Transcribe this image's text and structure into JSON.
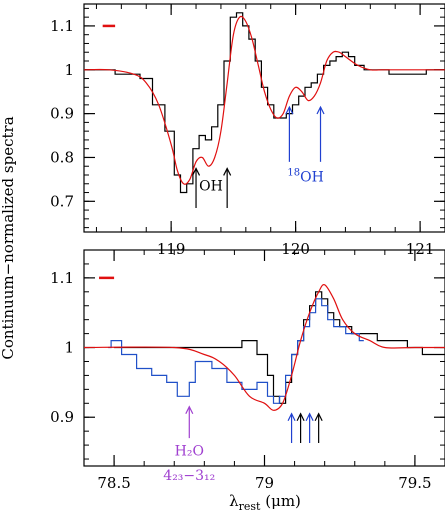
{
  "figure": {
    "ylabel": "Continuum−normalized spectra",
    "xlabel_main": "λ",
    "xlabel_sub": "rest",
    "xlabel_unit": " (μm)"
  },
  "chart_data": [
    {
      "type": "line",
      "panel": "top",
      "xlim": [
        118.3,
        121.2
      ],
      "ylim": [
        0.63,
        1.15
      ],
      "xticks": [
        119,
        120,
        121
      ],
      "xtick_labels": [
        "119",
        "120",
        "121"
      ],
      "yticks": [
        0.7,
        0.8,
        0.9,
        1.0,
        1.1
      ],
      "ytick_labels": [
        "0.7",
        "0.8",
        "0.9",
        "1",
        "1.1"
      ],
      "resolution_bar": {
        "x": [
          118.45,
          118.55
        ],
        "y": 1.1,
        "color": "#e01010"
      },
      "series": [
        {
          "style": "histogram",
          "color": "#000000",
          "x": [
            118.3,
            118.4,
            118.5,
            118.6,
            118.7,
            118.8,
            118.9,
            119.0,
            119.05,
            119.1,
            119.15,
            119.2,
            119.25,
            119.3,
            119.35,
            119.4,
            119.45,
            119.5,
            119.55,
            119.6,
            119.65,
            119.7,
            119.75,
            119.8,
            119.85,
            119.9,
            119.95,
            120.0,
            120.05,
            120.1,
            120.15,
            120.2,
            120.25,
            120.3,
            120.35,
            120.4,
            120.45,
            120.5,
            120.6,
            120.7,
            120.8,
            120.9,
            121.0,
            121.1,
            121.2
          ],
          "y": [
            1.0,
            1.0,
            1.0,
            0.99,
            0.99,
            0.98,
            0.92,
            0.86,
            0.76,
            0.72,
            0.74,
            0.82,
            0.85,
            0.84,
            0.87,
            0.92,
            1.02,
            1.12,
            1.13,
            1.1,
            1.07,
            1.02,
            0.96,
            0.92,
            0.89,
            0.89,
            0.9,
            0.92,
            0.94,
            0.96,
            0.97,
            0.99,
            1.01,
            1.02,
            1.03,
            1.04,
            1.03,
            1.01,
            1.0,
            1.0,
            0.99,
            0.99,
            0.99,
            1.0,
            1.0
          ]
        },
        {
          "style": "line",
          "color": "#e01010",
          "x": [
            118.3,
            118.5,
            118.7,
            118.8,
            118.9,
            119.0,
            119.05,
            119.1,
            119.15,
            119.2,
            119.25,
            119.3,
            119.35,
            119.4,
            119.45,
            119.5,
            119.55,
            119.6,
            119.65,
            119.7,
            119.75,
            119.8,
            119.85,
            119.9,
            119.95,
            120.0,
            120.05,
            120.1,
            120.15,
            120.2,
            120.25,
            120.3,
            120.35,
            120.4,
            120.5,
            120.6,
            120.7,
            120.8,
            120.9,
            121.0,
            121.2
          ],
          "y": [
            1.0,
            1.0,
            0.99,
            0.97,
            0.92,
            0.83,
            0.77,
            0.74,
            0.75,
            0.79,
            0.8,
            0.78,
            0.8,
            0.86,
            0.97,
            1.08,
            1.12,
            1.11,
            1.07,
            1.01,
            0.95,
            0.91,
            0.89,
            0.9,
            0.94,
            0.96,
            0.95,
            0.93,
            0.94,
            0.97,
            1.02,
            1.04,
            1.04,
            1.03,
            1.01,
            1.0,
            1.0,
            1.0,
            1.0,
            1.0,
            1.0
          ]
        }
      ],
      "annotations": [
        {
          "label": "OH",
          "color": "#000000",
          "arrows_x": [
            119.2,
            119.45
          ]
        },
        {
          "label_sup": "18",
          "label": "OH",
          "color": "#2040d0",
          "arrows_x": [
            119.95,
            120.2
          ]
        }
      ]
    },
    {
      "type": "line",
      "panel": "bottom",
      "xlim": [
        78.4,
        79.6
      ],
      "ylim": [
        0.83,
        1.14
      ],
      "xticks": [
        78.5,
        79.0,
        79.5
      ],
      "xtick_labels": [
        "78.5",
        "79",
        "79.5"
      ],
      "yticks": [
        0.9,
        1.0,
        1.1
      ],
      "ytick_labels": [
        "0.9",
        "1",
        "1.1"
      ],
      "resolution_bar": {
        "x": [
          78.45,
          78.5
        ],
        "y": 1.1,
        "color": "#e01010"
      },
      "series": [
        {
          "style": "histogram",
          "color": "#000000",
          "x": [
            78.5,
            78.55,
            78.6,
            78.65,
            78.7,
            78.75,
            78.8,
            78.85,
            78.9,
            78.95,
            79.0,
            79.02,
            79.04,
            79.06,
            79.08,
            79.1,
            79.12,
            79.14,
            79.16,
            79.18,
            79.2,
            79.22,
            79.24,
            79.26,
            79.28,
            79.3,
            79.35,
            79.4,
            79.45,
            79.5,
            79.55,
            79.6
          ],
          "y": [
            1.0,
            1.0,
            1.0,
            1.0,
            1.0,
            1.0,
            1.0,
            1.0,
            1.0,
            1.01,
            0.99,
            0.96,
            0.93,
            0.92,
            0.95,
            0.99,
            1.01,
            1.04,
            1.06,
            1.08,
            1.07,
            1.05,
            1.04,
            1.03,
            1.03,
            1.02,
            1.02,
            1.01,
            1.01,
            1.0,
            0.99,
            0.99
          ]
        },
        {
          "style": "histogram",
          "color": "#2050c8",
          "x": [
            78.48,
            78.5,
            78.55,
            78.6,
            78.65,
            78.7,
            78.72,
            78.74,
            78.76,
            78.78,
            78.8,
            78.85,
            78.9,
            78.95,
            79.0,
            79.02,
            79.04,
            79.06,
            79.08,
            79.1,
            79.12,
            79.14,
            79.16,
            79.18,
            79.2,
            79.22,
            79.24,
            79.26,
            79.28,
            79.3,
            79.33
          ],
          "y": [
            1.0,
            1.01,
            0.99,
            0.97,
            0.96,
            0.95,
            0.93,
            0.93,
            0.95,
            0.98,
            0.98,
            0.97,
            0.95,
            0.94,
            0.95,
            0.93,
            0.92,
            0.93,
            0.96,
            0.99,
            1.01,
            1.03,
            1.05,
            1.07,
            1.06,
            1.04,
            1.03,
            1.03,
            1.02,
            1.02,
            1.01
          ]
        },
        {
          "style": "line",
          "color": "#e01010",
          "x": [
            78.4,
            78.7,
            78.8,
            78.85,
            78.9,
            78.95,
            79.0,
            79.03,
            79.06,
            79.09,
            79.12,
            79.15,
            79.18,
            79.2,
            79.23,
            79.26,
            79.3,
            79.35,
            79.4,
            79.5,
            79.6
          ],
          "y": [
            1.0,
            1.0,
            0.99,
            0.98,
            0.96,
            0.93,
            0.92,
            0.91,
            0.92,
            0.96,
            1.01,
            1.05,
            1.08,
            1.09,
            1.07,
            1.04,
            1.02,
            1.01,
            1.0,
            1.0,
            1.0
          ]
        }
      ],
      "annotations": [
        {
          "label": "H₂O",
          "label2": "4₂₃−3₁₂",
          "color": "#a040d0",
          "arrows_x": [
            78.75
          ]
        },
        {
          "colors": [
            "#2040d0",
            "#000000",
            "#2040d0",
            "#000000"
          ],
          "arrows_x": [
            79.09,
            79.12,
            79.15,
            79.18
          ]
        }
      ]
    }
  ]
}
